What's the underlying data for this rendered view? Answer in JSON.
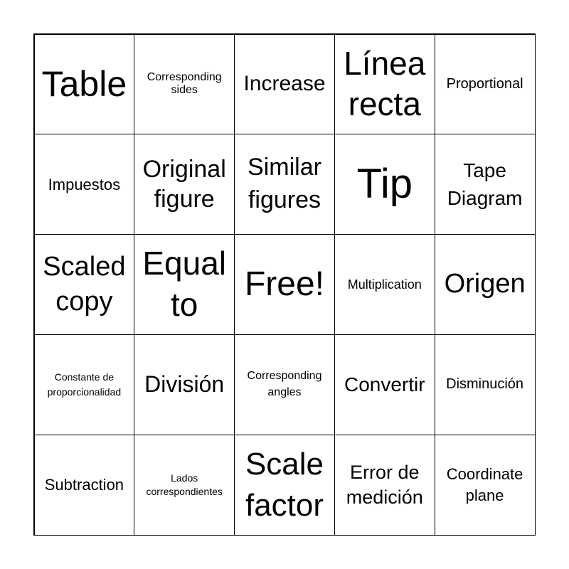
{
  "card": {
    "cells": [
      "Table",
      "Corresponding sides",
      "Increase",
      "Línea recta",
      "Proportional",
      "Impuestos",
      "Original figure",
      "Similar figures",
      "Tip",
      "Tape Diagram",
      "Scaled copy",
      "Equal to",
      "Free!",
      "Multiplication",
      "Origen",
      "Constante de proporcionalidad",
      "División",
      "Corresponding angles",
      "Convertir",
      "Disminución",
      "Subtraction",
      "Lados correspondientes",
      "Scale factor",
      "Error de medición",
      "Coordinate plane"
    ]
  }
}
